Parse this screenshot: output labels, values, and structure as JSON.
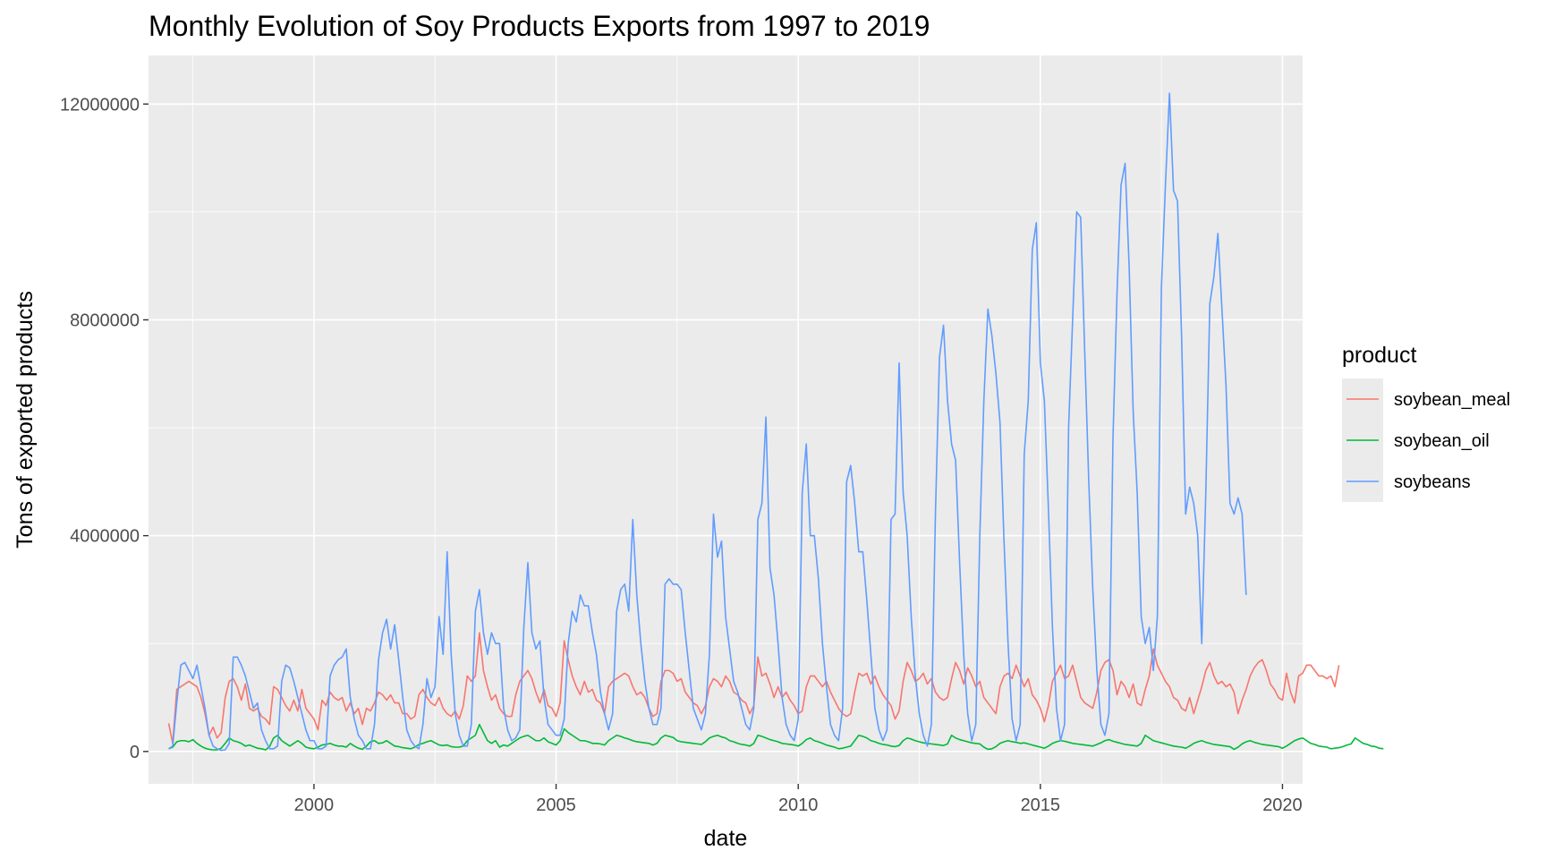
{
  "chart_data": {
    "type": "line",
    "title": "Monthly Evolution of Soy Products Exports from 1997 to 2019",
    "xlabel": "date",
    "ylabel": "Tons of exported products",
    "xlim": [
      "1996-08",
      "2020-06"
    ],
    "ylim": [
      -600000,
      12900000
    ],
    "x_ticks": [
      2000,
      2005,
      2010,
      2015,
      2020
    ],
    "x_tick_labels": [
      "2000",
      "2005",
      "2010",
      "2015",
      "2020"
    ],
    "y_ticks": [
      0,
      4000000,
      8000000,
      12000000
    ],
    "y_tick_labels": [
      "0",
      "4000000",
      "8000000",
      "12000000"
    ],
    "grid": true,
    "legend": {
      "title": "product",
      "position": "right"
    },
    "x_unit": "month",
    "x_start": "1997-01",
    "series": [
      {
        "name": "soybean_meal",
        "color": "#F8766D",
        "values": [
          520000,
          150000,
          1150000,
          1200000,
          1250000,
          1300000,
          1250000,
          1200000,
          1000000,
          700000,
          300000,
          450000,
          250000,
          350000,
          1000000,
          1300000,
          1350000,
          1200000,
          950000,
          1250000,
          800000,
          750000,
          800000,
          650000,
          600000,
          500000,
          1200000,
          1150000,
          1000000,
          850000,
          750000,
          950000,
          750000,
          1150000,
          800000,
          700000,
          600000,
          400000,
          950000,
          850000,
          1100000,
          1000000,
          950000,
          1000000,
          750000,
          900000,
          700000,
          800000,
          500000,
          800000,
          750000,
          900000,
          1100000,
          1050000,
          950000,
          1050000,
          900000,
          900000,
          700000,
          700000,
          600000,
          650000,
          1050000,
          1150000,
          1000000,
          900000,
          850000,
          1000000,
          800000,
          700000,
          650000,
          750000,
          600000,
          850000,
          1400000,
          1300000,
          1400000,
          2200000,
          1500000,
          1200000,
          950000,
          1050000,
          800000,
          700000,
          650000,
          650000,
          1050000,
          1300000,
          1400000,
          1500000,
          1350000,
          1100000,
          900000,
          1150000,
          850000,
          800000,
          650000,
          900000,
          2050000,
          1700000,
          1400000,
          1200000,
          1050000,
          1300000,
          1100000,
          1150000,
          950000,
          900000,
          700000,
          1200000,
          1300000,
          1350000,
          1400000,
          1450000,
          1400000,
          1200000,
          1050000,
          1100000,
          1000000,
          800000,
          650000,
          700000,
          1300000,
          1500000,
          1500000,
          1450000,
          1300000,
          1350000,
          1100000,
          1000000,
          900000,
          850000,
          700000,
          850000,
          1200000,
          1350000,
          1300000,
          1200000,
          1400000,
          1300000,
          1100000,
          1050000,
          950000,
          900000,
          700000,
          850000,
          1750000,
          1400000,
          1450000,
          1250000,
          1000000,
          1200000,
          1000000,
          1100000,
          950000,
          850000,
          700000,
          750000,
          1200000,
          1400000,
          1400000,
          1300000,
          1200000,
          1300000,
          1100000,
          950000,
          800000,
          700000,
          650000,
          700000,
          1100000,
          1450000,
          1400000,
          1450000,
          1250000,
          1400000,
          1200000,
          1050000,
          950000,
          850000,
          600000,
          750000,
          1300000,
          1650000,
          1500000,
          1300000,
          1350000,
          1450000,
          1250000,
          1350000,
          1100000,
          1000000,
          950000,
          1000000,
          1350000,
          1650000,
          1500000,
          1250000,
          1550000,
          1400000,
          1200000,
          1300000,
          1000000,
          900000,
          800000,
          700000,
          1200000,
          1400000,
          1450000,
          1350000,
          1600000,
          1400000,
          1200000,
          1350000,
          1050000,
          950000,
          800000,
          550000,
          850000,
          1300000,
          1450000,
          1600000,
          1350000,
          1400000,
          1600000,
          1300000,
          1000000,
          900000,
          850000,
          800000,
          1100000,
          1500000,
          1650000,
          1700000,
          1500000,
          1050000,
          1300000,
          1200000,
          1000000,
          1250000,
          900000,
          850000,
          1150000,
          1400000,
          1900000,
          1600000,
          1450000,
          1300000,
          1200000,
          1000000,
          950000,
          800000,
          750000,
          1000000,
          700000,
          950000,
          1200000,
          1500000,
          1650000,
          1400000,
          1250000,
          1300000,
          1200000,
          1250000,
          1100000,
          700000,
          950000,
          1150000,
          1400000,
          1550000,
          1650000,
          1700000,
          1500000,
          1250000,
          1150000,
          1000000,
          950000,
          1450000,
          1100000,
          900000,
          1400000,
          1450000,
          1600000,
          1600000,
          1500000,
          1400000,
          1400000,
          1350000,
          1400000,
          1200000,
          1600000
        ]
      },
      {
        "name": "soybean_oil",
        "color": "#00BA38",
        "values": [
          50000,
          80000,
          180000,
          200000,
          200000,
          180000,
          220000,
          150000,
          100000,
          60000,
          40000,
          30000,
          30000,
          60000,
          150000,
          250000,
          200000,
          180000,
          150000,
          100000,
          120000,
          90000,
          60000,
          50000,
          30000,
          90000,
          250000,
          300000,
          200000,
          150000,
          100000,
          150000,
          200000,
          150000,
          80000,
          60000,
          50000,
          80000,
          120000,
          130000,
          150000,
          120000,
          100000,
          100000,
          80000,
          150000,
          100000,
          60000,
          40000,
          100000,
          180000,
          200000,
          150000,
          160000,
          200000,
          150000,
          100000,
          90000,
          70000,
          60000,
          50000,
          80000,
          130000,
          150000,
          180000,
          200000,
          160000,
          120000,
          110000,
          120000,
          90000,
          80000,
          80000,
          100000,
          200000,
          250000,
          300000,
          500000,
          350000,
          200000,
          150000,
          200000,
          80000,
          120000,
          100000,
          150000,
          200000,
          250000,
          280000,
          300000,
          250000,
          200000,
          200000,
          250000,
          180000,
          150000,
          120000,
          200000,
          420000,
          350000,
          300000,
          250000,
          200000,
          200000,
          180000,
          150000,
          150000,
          140000,
          120000,
          200000,
          250000,
          300000,
          280000,
          250000,
          230000,
          200000,
          180000,
          170000,
          160000,
          150000,
          120000,
          150000,
          250000,
          300000,
          280000,
          260000,
          200000,
          180000,
          170000,
          160000,
          150000,
          140000,
          130000,
          180000,
          250000,
          280000,
          300000,
          270000,
          250000,
          200000,
          180000,
          150000,
          130000,
          120000,
          100000,
          150000,
          300000,
          280000,
          250000,
          220000,
          200000,
          180000,
          150000,
          140000,
          130000,
          120000,
          100000,
          150000,
          220000,
          250000,
          200000,
          180000,
          150000,
          120000,
          100000,
          80000,
          50000,
          60000,
          80000,
          100000,
          200000,
          300000,
          280000,
          250000,
          200000,
          180000,
          150000,
          130000,
          120000,
          100000,
          90000,
          110000,
          200000,
          250000,
          230000,
          200000,
          180000,
          160000,
          150000,
          140000,
          130000,
          120000,
          110000,
          140000,
          300000,
          250000,
          220000,
          200000,
          180000,
          160000,
          150000,
          140000,
          80000,
          40000,
          50000,
          90000,
          150000,
          180000,
          200000,
          180000,
          170000,
          150000,
          160000,
          140000,
          120000,
          100000,
          80000,
          60000,
          100000,
          150000,
          180000,
          200000,
          190000,
          170000,
          150000,
          140000,
          130000,
          120000,
          110000,
          100000,
          130000,
          160000,
          200000,
          220000,
          190000,
          170000,
          150000,
          130000,
          120000,
          110000,
          100000,
          150000,
          300000,
          250000,
          200000,
          180000,
          160000,
          140000,
          120000,
          100000,
          90000,
          80000,
          60000,
          100000,
          150000,
          180000,
          200000,
          170000,
          150000,
          130000,
          120000,
          110000,
          100000,
          90000,
          40000,
          80000,
          140000,
          180000,
          200000,
          170000,
          150000,
          130000,
          120000,
          110000,
          100000,
          90000,
          60000,
          100000,
          150000,
          200000,
          230000,
          250000,
          200000,
          150000,
          130000,
          100000,
          90000,
          80000,
          50000,
          60000,
          70000,
          90000,
          120000,
          140000,
          250000,
          200000,
          150000,
          130000,
          100000,
          90000,
          60000,
          50000
        ]
      },
      {
        "name": "soybeans",
        "color": "#619CFF",
        "values": [
          50000,
          100000,
          900000,
          1600000,
          1650000,
          1500000,
          1350000,
          1600000,
          1200000,
          800000,
          300000,
          100000,
          50000,
          20000,
          30000,
          150000,
          1750000,
          1750000,
          1600000,
          1400000,
          1100000,
          800000,
          900000,
          400000,
          200000,
          50000,
          50000,
          100000,
          1300000,
          1600000,
          1550000,
          1300000,
          1000000,
          700000,
          400000,
          200000,
          200000,
          50000,
          50000,
          100000,
          1400000,
          1600000,
          1700000,
          1750000,
          1900000,
          1000000,
          600000,
          300000,
          200000,
          50000,
          50000,
          500000,
          1700000,
          2200000,
          2450000,
          1900000,
          2350000,
          1700000,
          1000000,
          400000,
          200000,
          100000,
          50000,
          500000,
          1350000,
          1000000,
          1200000,
          2500000,
          1800000,
          3700000,
          1800000,
          700000,
          300000,
          100000,
          100000,
          500000,
          2600000,
          3000000,
          2200000,
          1800000,
          2200000,
          2000000,
          2000000,
          800000,
          400000,
          200000,
          250000,
          400000,
          2300000,
          3500000,
          2200000,
          1900000,
          2050000,
          1000000,
          500000,
          400000,
          300000,
          300000,
          600000,
          2000000,
          2600000,
          2400000,
          2900000,
          2700000,
          2700000,
          2200000,
          1800000,
          1100000,
          700000,
          400000,
          700000,
          2600000,
          3000000,
          3100000,
          2600000,
          4300000,
          2900000,
          2000000,
          1300000,
          800000,
          500000,
          500000,
          800000,
          3100000,
          3200000,
          3100000,
          3100000,
          3000000,
          2200000,
          1500000,
          800000,
          600000,
          400000,
          700000,
          1800000,
          4400000,
          3600000,
          3900000,
          2500000,
          1900000,
          1300000,
          1100000,
          800000,
          500000,
          400000,
          800000,
          4300000,
          4600000,
          6200000,
          3400000,
          2900000,
          2000000,
          1000000,
          500000,
          300000,
          200000,
          600000,
          4800000,
          5700000,
          4000000,
          4000000,
          3200000,
          2000000,
          1200000,
          500000,
          300000,
          200000,
          800000,
          5000000,
          5300000,
          4600000,
          3700000,
          3700000,
          2800000,
          1800000,
          800000,
          400000,
          200000,
          400000,
          4300000,
          4400000,
          7200000,
          4800000,
          4000000,
          2500000,
          1400000,
          700000,
          300000,
          100000,
          500000,
          4400000,
          7300000,
          7900000,
          6500000,
          5700000,
          5400000,
          3500000,
          1800000,
          700000,
          200000,
          500000,
          4000000,
          6500000,
          8200000,
          7700000,
          7000000,
          6100000,
          3900000,
          2000000,
          600000,
          200000,
          500000,
          5500000,
          6500000,
          9300000,
          9800000,
          7200000,
          6500000,
          4500000,
          2300000,
          800000,
          200000,
          500000,
          6000000,
          8000000,
          10000000,
          9900000,
          7400000,
          5000000,
          3000000,
          1500000,
          500000,
          300000,
          700000,
          5800000,
          8500000,
          10500000,
          10900000,
          9000000,
          6300000,
          4800000,
          2500000,
          2000000,
          2300000,
          1500000,
          2500000,
          8600000,
          10500000,
          12200000,
          10400000,
          10200000,
          7700000,
          4400000,
          4900000,
          4600000,
          4000000,
          2000000,
          4800000,
          8300000,
          8800000,
          9600000,
          8200000,
          6800000,
          4600000,
          4400000,
          4700000,
          4400000,
          2900000
        ]
      }
    ]
  }
}
